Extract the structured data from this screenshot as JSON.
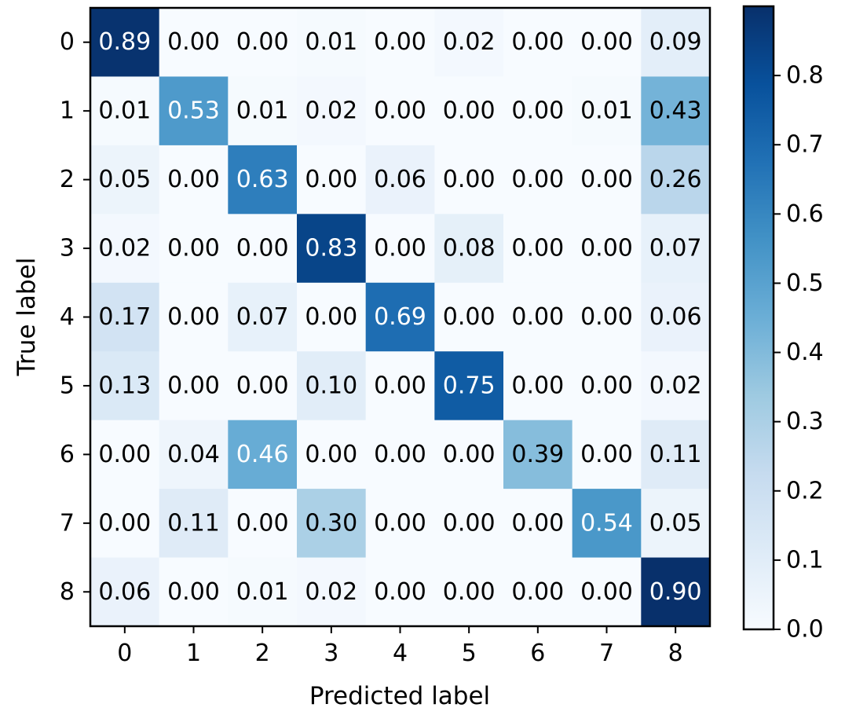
{
  "chart_data": {
    "type": "heatmap",
    "xlabel": "Predicted label",
    "ylabel": "True label",
    "x_categories": [
      "0",
      "1",
      "2",
      "3",
      "4",
      "5",
      "6",
      "7",
      "8"
    ],
    "y_categories": [
      "0",
      "1",
      "2",
      "3",
      "4",
      "5",
      "6",
      "7",
      "8"
    ],
    "values": [
      [
        0.89,
        0.0,
        0.0,
        0.01,
        0.0,
        0.02,
        0.0,
        0.0,
        0.09
      ],
      [
        0.01,
        0.53,
        0.01,
        0.02,
        0.0,
        0.0,
        0.0,
        0.01,
        0.43
      ],
      [
        0.05,
        0.0,
        0.63,
        0.0,
        0.06,
        0.0,
        0.0,
        0.0,
        0.26
      ],
      [
        0.02,
        0.0,
        0.0,
        0.83,
        0.0,
        0.08,
        0.0,
        0.0,
        0.07
      ],
      [
        0.17,
        0.0,
        0.07,
        0.0,
        0.69,
        0.0,
        0.0,
        0.0,
        0.06
      ],
      [
        0.13,
        0.0,
        0.0,
        0.1,
        0.0,
        0.75,
        0.0,
        0.0,
        0.02
      ],
      [
        0.0,
        0.04,
        0.46,
        0.0,
        0.0,
        0.0,
        0.39,
        0.0,
        0.11
      ],
      [
        0.0,
        0.11,
        0.0,
        0.3,
        0.0,
        0.0,
        0.0,
        0.54,
        0.05
      ],
      [
        0.06,
        0.0,
        0.01,
        0.02,
        0.0,
        0.0,
        0.0,
        0.0,
        0.9
      ]
    ],
    "value_format": "0.00",
    "colormap": "Blues",
    "color_range": [
      0.0,
      0.9
    ],
    "colorbar": {
      "ticks": [
        0.0,
        0.1,
        0.2,
        0.3,
        0.4,
        0.5,
        0.6,
        0.7,
        0.8
      ],
      "tick_labels": [
        "0.0",
        "0.1",
        "0.2",
        "0.3",
        "0.4",
        "0.5",
        "0.6",
        "0.7",
        "0.8"
      ]
    },
    "grid": false
  }
}
